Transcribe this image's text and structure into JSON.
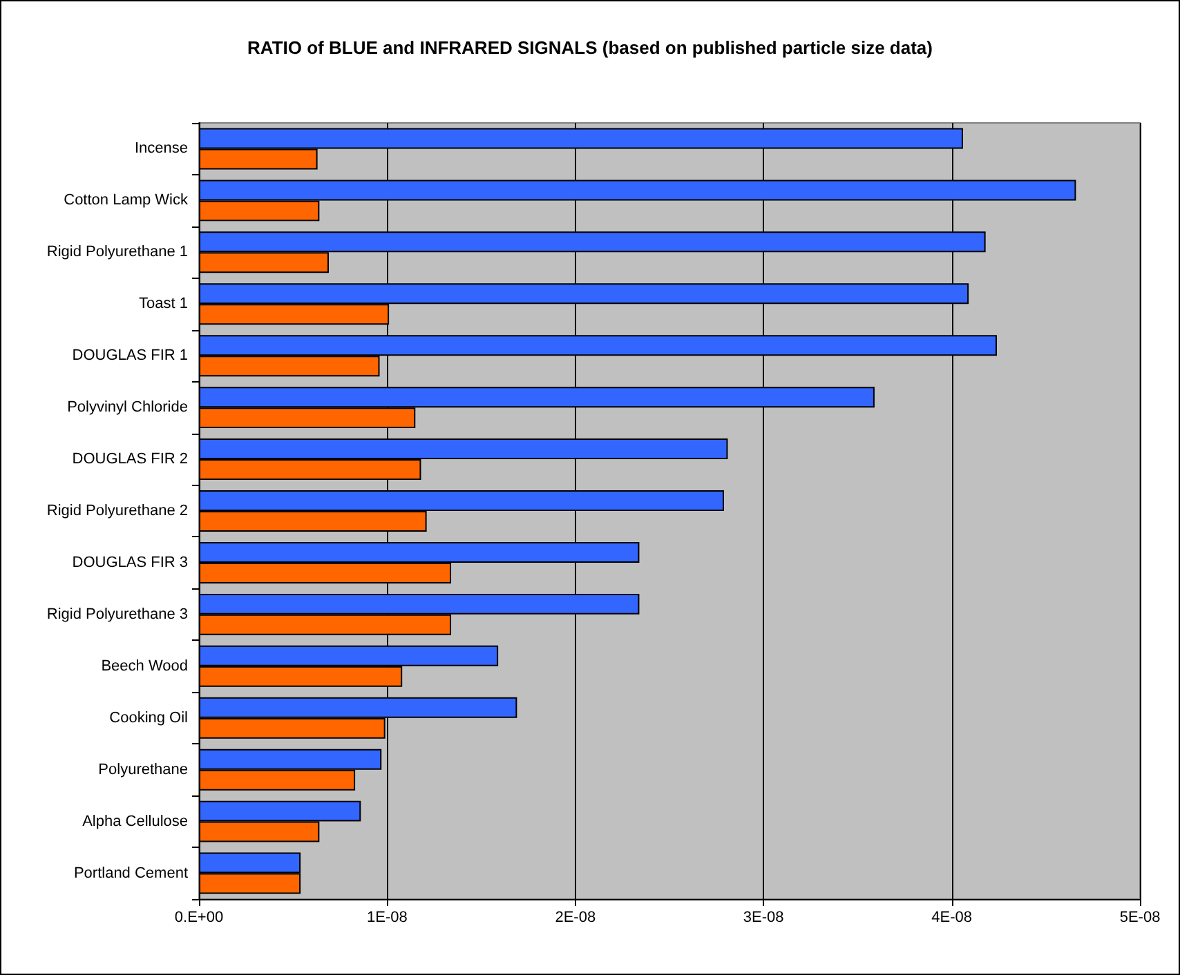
{
  "chart_data": {
    "type": "bar",
    "orientation": "horizontal",
    "title": "RATIO of BLUE and INFRARED SIGNALS (based on published particle size data)",
    "categories": [
      "Incense",
      "Cotton Lamp Wick",
      "Rigid Polyurethane 1",
      "Toast 1",
      "DOUGLAS FIR 1",
      "Polyvinyl Chloride",
      "DOUGLAS FIR 2",
      "Rigid Polyurethane 2",
      "DOUGLAS FIR 3",
      "Rigid Polyurethane 3",
      "Beech Wood",
      "Cooking Oil",
      "Polyurethane",
      "Alpha Cellulose",
      "Portland Cement"
    ],
    "series": [
      {
        "color": "#3366ff",
        "values": [
          4.06e-08,
          4.66e-08,
          4.18e-08,
          4.09e-08,
          4.24e-08,
          3.59e-08,
          2.81e-08,
          2.79e-08,
          2.34e-08,
          2.34e-08,
          1.59e-08,
          1.69e-08,
          9.7e-09,
          8.6e-09,
          5.4e-09
        ]
      },
      {
        "color": "#ff6600",
        "values": [
          6.3e-09,
          6.4e-09,
          6.9e-09,
          1.01e-08,
          9.6e-09,
          1.15e-08,
          1.18e-08,
          1.21e-08,
          1.34e-08,
          1.34e-08,
          1.08e-08,
          9.9e-09,
          8.3e-09,
          6.4e-09,
          5.4e-09
        ]
      }
    ],
    "xlim": [
      0,
      5e-08
    ],
    "xticks": [
      {
        "value": 0,
        "label": "0.E+00"
      },
      {
        "value": 1e-08,
        "label": "1E-08"
      },
      {
        "value": 2e-08,
        "label": "2E-08"
      },
      {
        "value": 3e-08,
        "label": "3E-08"
      },
      {
        "value": 4e-08,
        "label": "4E-08"
      },
      {
        "value": 5e-08,
        "label": "5E-08"
      }
    ],
    "grid": "x"
  }
}
